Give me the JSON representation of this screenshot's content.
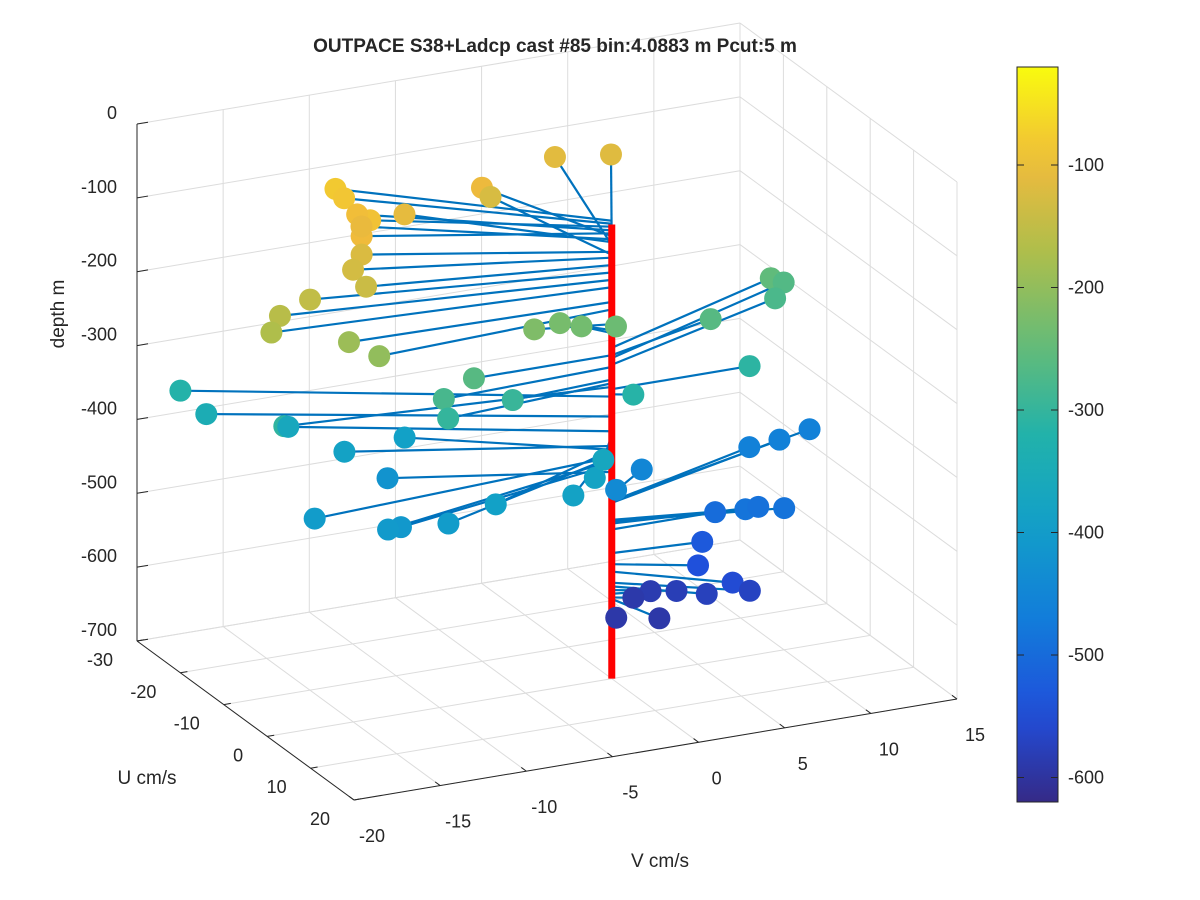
{
  "chart_data": {
    "type": "scatter",
    "title": "OUTPACE S38+Ladcp cast #85 bin:4.0883 m  Pcut:5 m",
    "zlabel": "depth m",
    "ulabel": "U cm/s",
    "vlabel": "V cm/s",
    "depth_ticks": [
      "0",
      "-100",
      "-200",
      "-300",
      "-400",
      "-500",
      "-600",
      "-700"
    ],
    "u_ticks": [
      "-30",
      "-20",
      "-10",
      "0",
      "10",
      "20"
    ],
    "v_ticks": [
      "-20",
      "-15",
      "-10",
      "-5",
      "0",
      "5",
      "10",
      "15"
    ],
    "colorbar_ticks": [
      "-100",
      "-200",
      "-300",
      "-400",
      "-500",
      "-600"
    ],
    "colorbar_range": [
      -620,
      -20
    ],
    "colormap": "parula",
    "grid": true,
    "stick_color": "#0072bd",
    "profile_color": "#ff0000",
    "points": [
      {
        "u": -20,
        "v": -11,
        "depth": -80
      },
      {
        "u": -18,
        "v": -11,
        "depth": -84
      },
      {
        "u": -12,
        "v": -11,
        "depth": -88
      },
      {
        "u": -15,
        "v": -11,
        "depth": -93
      },
      {
        "u": -10,
        "v": -12,
        "depth": -97
      },
      {
        "u": -18,
        "v": -3,
        "depth": -101
      },
      {
        "u": -14,
        "v": -11,
        "depth": -105
      },
      {
        "u": -16,
        "v": -8,
        "depth": -109
      },
      {
        "u": -25,
        "v": 3,
        "depth": -113
      },
      {
        "u": -24,
        "v": 6,
        "depth": -117
      },
      {
        "u": -10,
        "v": -12,
        "depth": -122
      },
      {
        "u": -20,
        "v": -2,
        "depth": -126
      },
      {
        "u": -8,
        "v": -13,
        "depth": -130
      },
      {
        "u": -5,
        "v": -13,
        "depth": -140
      },
      {
        "u": -6,
        "v": -16,
        "depth": -150
      },
      {
        "u": -5,
        "v": -18,
        "depth": -160
      },
      {
        "u": -3,
        "v": -19,
        "depth": -170
      },
      {
        "u": -1,
        "v": -15,
        "depth": -190
      },
      {
        "u": 2,
        "v": -14,
        "depth": -200
      },
      {
        "u": -2,
        "v": -4,
        "depth": -220
      },
      {
        "u": -4,
        "v": -2,
        "depth": -228
      },
      {
        "u": -3,
        "v": -1,
        "depth": -232
      },
      {
        "u": -3,
        "v": 1,
        "depth": -240
      },
      {
        "u": 0,
        "v": -8,
        "depth": -262
      },
      {
        "u": 1,
        "v": -10,
        "depth": -278
      },
      {
        "u": 2,
        "v": -10,
        "depth": -300
      },
      {
        "u": 1,
        "v": -6,
        "depth": -295
      },
      {
        "u": -5,
        "v": 7,
        "depth": -262
      },
      {
        "u": -11,
        "v": 12,
        "depth": -252
      },
      {
        "u": -12,
        "v": 13,
        "depth": -266
      },
      {
        "u": -10,
        "v": 12,
        "depth": -275
      },
      {
        "u": 0,
        "v": 8,
        "depth": -308
      },
      {
        "u": 1,
        "v": 1,
        "depth": -315
      },
      {
        "u": -4,
        "v": -18,
        "depth": -305
      },
      {
        "u": -20,
        "v": -20,
        "depth": -318
      },
      {
        "u": -18,
        "v": -19,
        "depth": -345
      },
      {
        "u": -15,
        "v": -15,
        "depth": -365
      },
      {
        "u": -10,
        "v": -13,
        "depth": -385
      },
      {
        "u": -12,
        "v": -9,
        "depth": -390
      },
      {
        "u": -8,
        "v": -11,
        "depth": -420
      },
      {
        "u": 3,
        "v": -18,
        "depth": -400
      },
      {
        "u": 7,
        "v": -14,
        "depth": -410
      },
      {
        "u": 8,
        "v": -15,
        "depth": -405
      },
      {
        "u": 10,
        "v": -12,
        "depth": -400
      },
      {
        "u": 9,
        "v": -9,
        "depth": -390
      },
      {
        "u": 11,
        "v": -5,
        "depth": -385
      },
      {
        "u": 8,
        "v": -3,
        "depth": -382
      },
      {
        "u": 6,
        "v": -2,
        "depth": -370
      },
      {
        "u": 1,
        "v": 0,
        "depth": -440
      },
      {
        "u": -5,
        "v": 3,
        "depth": -450
      },
      {
        "u": -8,
        "v": 10,
        "depth": -460
      },
      {
        "u": -9,
        "v": 12,
        "depth": -462
      },
      {
        "u": -10,
        "v": 14,
        "depth": -460
      },
      {
        "u": 3,
        "v": 7,
        "depth": -485
      },
      {
        "u": 4,
        "v": 9,
        "depth": -487
      },
      {
        "u": 2,
        "v": 8,
        "depth": -490
      },
      {
        "u": 0,
        "v": 6,
        "depth": -498
      },
      {
        "u": 1,
        "v": 5,
        "depth": -530
      },
      {
        "u": 4,
        "v": 4,
        "depth": -545
      },
      {
        "u": 8,
        "v": 5,
        "depth": -555
      },
      {
        "u": 8,
        "v": 6,
        "depth": -570
      },
      {
        "u": 6,
        "v": 4,
        "depth": -575
      },
      {
        "u": 3,
        "v": 3,
        "depth": -580
      },
      {
        "u": 1,
        "v": 2,
        "depth": -585
      },
      {
        "u": 1,
        "v": 1,
        "depth": -590
      },
      {
        "u": 7,
        "v": 1,
        "depth": -592
      },
      {
        "u": 5,
        "v": -1,
        "depth": -592
      }
    ]
  }
}
